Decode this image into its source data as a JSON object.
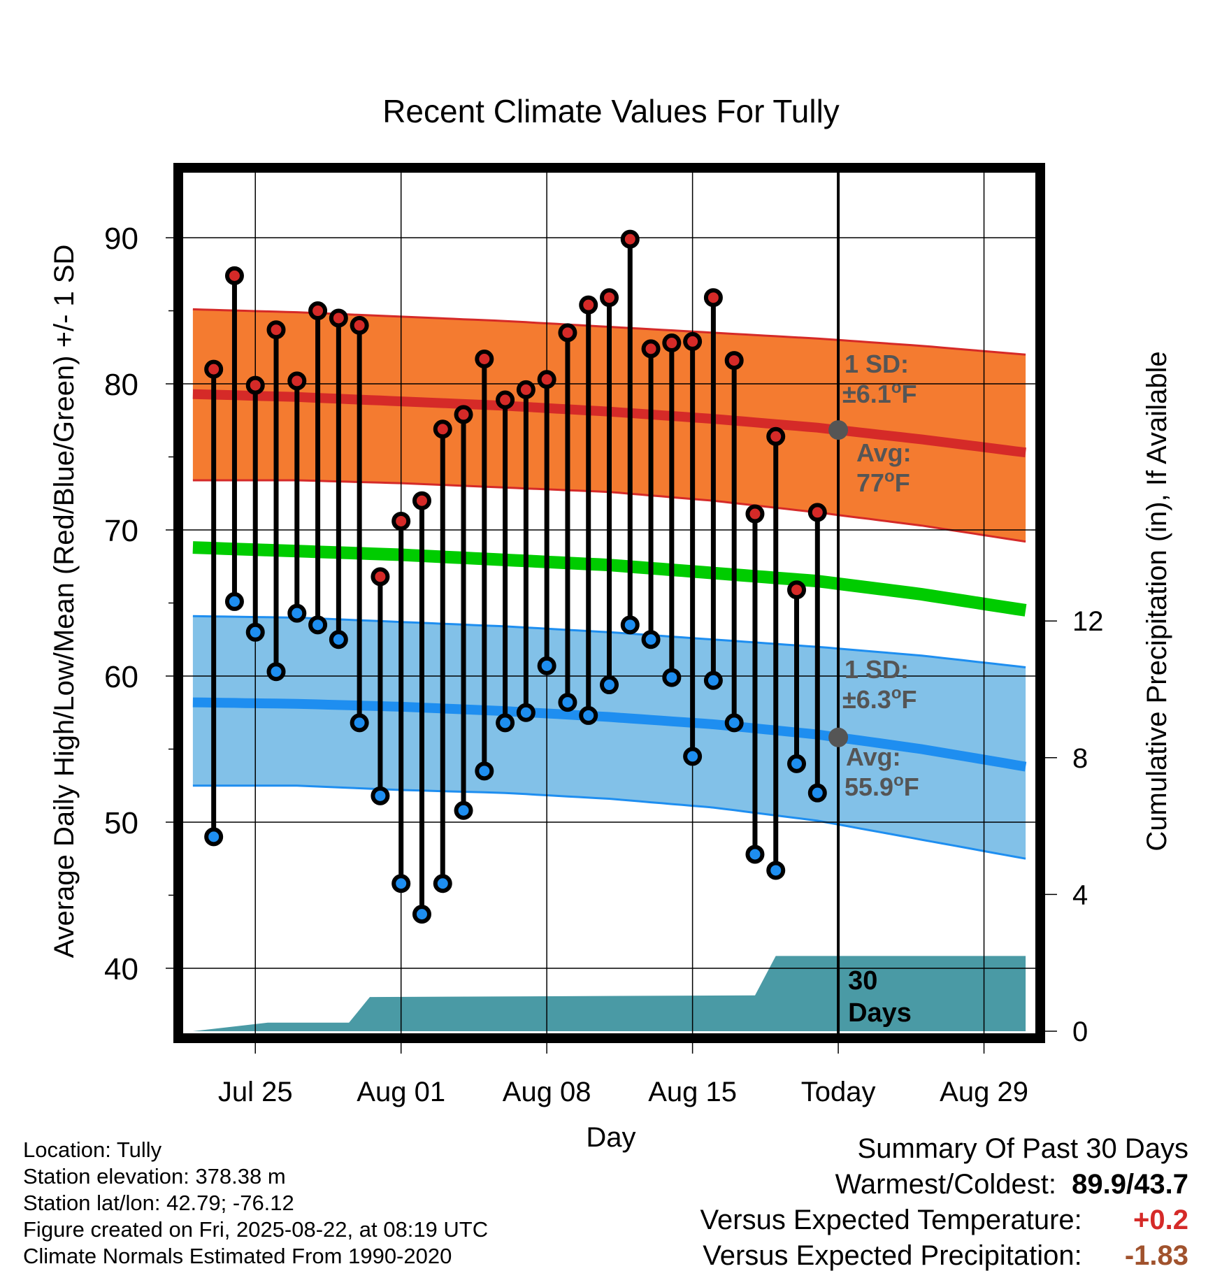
{
  "chart_data": {
    "type": "line",
    "title": "Recent Climate Values For Tully",
    "xlabel": "Day",
    "ylabel": "Average Daily High/Low/Mean (Red/Blue/Green) +/- 1 SD",
    "y2label": "Cumulative Precipitation (in), If Available",
    "x_tick_labels": [
      "Jul 25",
      "Aug 01",
      "Aug 08",
      "Aug 15",
      "Today",
      "Aug 29"
    ],
    "x_tick_days": [
      3,
      10,
      17,
      24,
      31,
      38
    ],
    "xlim": [
      -0.5,
      40.5
    ],
    "ylim": [
      35.5,
      94.5
    ],
    "y_ticks": [
      40,
      50,
      60,
      70,
      80,
      90
    ],
    "y2_ticks": [
      0,
      4,
      8,
      12
    ],
    "grid": true,
    "today_day": 31,
    "highs": [
      81.0,
      87.4,
      79.9,
      83.7,
      80.2,
      85.0,
      84.5,
      84.0,
      66.8,
      70.6,
      72.0,
      76.9,
      77.9,
      81.7,
      78.9,
      79.6,
      80.3,
      83.5,
      85.4,
      85.9,
      89.9,
      82.4,
      82.8,
      82.9,
      85.9,
      81.6,
      71.1,
      76.4,
      65.9,
      71.2
    ],
    "lows": [
      49.0,
      65.1,
      63.0,
      60.3,
      64.3,
      63.5,
      62.5,
      56.8,
      51.8,
      45.8,
      43.7,
      45.8,
      50.8,
      53.5,
      56.8,
      57.5,
      60.7,
      58.2,
      57.3,
      59.4,
      63.5,
      62.5,
      59.9,
      54.5,
      59.7,
      56.8,
      47.8,
      46.7,
      54.0,
      52.0
    ],
    "normal_high": {
      "days": [
        0,
        5,
        10,
        15,
        20,
        25,
        30,
        35,
        40
      ],
      "mean": [
        79.3,
        79.1,
        78.8,
        78.5,
        78.1,
        77.6,
        77.0,
        76.2,
        75.3
      ],
      "sd_band": [
        [
          73.4,
          85.1
        ],
        [
          73.4,
          84.9
        ],
        [
          73.2,
          84.6
        ],
        [
          72.9,
          84.3
        ],
        [
          72.6,
          83.9
        ],
        [
          72.0,
          83.5
        ],
        [
          71.2,
          83.1
        ],
        [
          70.3,
          82.6
        ],
        [
          69.2,
          82.0
        ]
      ]
    },
    "normal_low": {
      "days": [
        0,
        5,
        10,
        15,
        20,
        25,
        30,
        35,
        40
      ],
      "mean": [
        58.2,
        58.1,
        57.9,
        57.6,
        57.2,
        56.7,
        56.0,
        55.0,
        53.8
      ],
      "sd_band": [
        [
          52.5,
          64.1
        ],
        [
          52.5,
          64.0
        ],
        [
          52.2,
          63.7
        ],
        [
          52.0,
          63.4
        ],
        [
          51.6,
          63.0
        ],
        [
          51.0,
          62.5
        ],
        [
          50.1,
          62.0
        ],
        [
          48.8,
          61.4
        ],
        [
          47.5,
          60.6
        ]
      ]
    },
    "normal_mean": {
      "days": [
        0,
        10,
        20,
        30,
        35,
        40
      ],
      "values": [
        68.8,
        68.3,
        67.6,
        66.5,
        65.6,
        64.5
      ]
    },
    "precipitation": {
      "days": [
        0,
        3.6,
        7.5,
        8.5,
        27,
        28,
        40
      ],
      "cumulative_in": [
        0,
        0.25,
        0.25,
        1.0,
        1.05,
        2.2,
        2.2
      ],
      "label": "30 Days"
    },
    "high_annotation": {
      "sd": "1 SD:",
      "sd_value": "±6.1",
      "avg": "Avg:",
      "avg_value": "77",
      "unit_o": "o",
      "unit_f": "F"
    },
    "low_annotation": {
      "sd": "1 SD:",
      "sd_value": "±6.3",
      "avg": "Avg:",
      "avg_value": "55.9",
      "unit_o": "o",
      "unit_f": "F"
    },
    "colors": {
      "high_band": "#f47b30",
      "high_line": "#d52a28",
      "low_band": "#82c1e8",
      "low_line": "#1e8ef0",
      "mean_line": "#00cc00",
      "precip": "#4a9aa5",
      "high_marker": "#d52a28",
      "low_marker": "#1e8ef0",
      "annotation": "#555555"
    }
  },
  "meta": {
    "location": "Location: Tully",
    "elevation": "Station elevation: 378.38 m",
    "latlon": "Station lat/lon: 42.79; -76.12",
    "created": "Figure created on Fri, 2025-08-22, at 08:19 UTC",
    "normals": "Climate Normals Estimated From 1990-2020"
  },
  "summary": {
    "heading": "Summary Of Past 30 Days",
    "warmest_label": "Warmest/Coldest:",
    "warmest_value": "89.9/43.7",
    "temp_label": "Versus Expected Temperature:",
    "temp_value": "+0.2",
    "temp_color": "#d52a28",
    "precip_label": "Versus Expected Precipitation:",
    "precip_value": "-1.83",
    "precip_color": "#a0522d"
  }
}
